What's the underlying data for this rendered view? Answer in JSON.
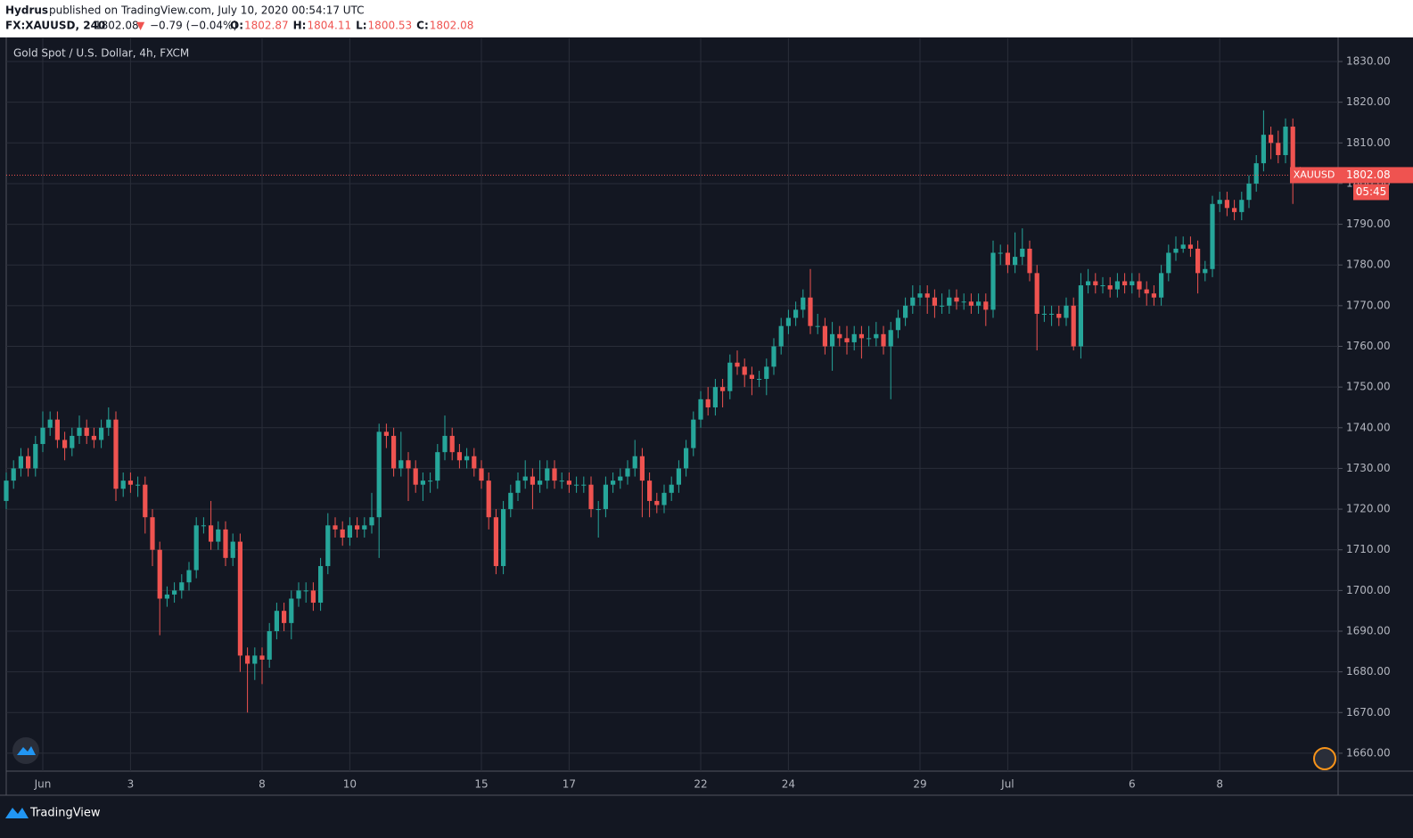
{
  "header": {
    "author": "Hydrus",
    "published": "published on TradingView.com, July 10, 2020 00:54:17 UTC",
    "symbol": "FX:XAUUSD, 240",
    "price": "1802.08",
    "arrow": "▼",
    "change": "−0.79 (−0.04%)",
    "ohlc": [
      {
        "label": "O:",
        "value": "1802.87"
      },
      {
        "label": "H:",
        "value": "1804.11"
      },
      {
        "label": "L:",
        "value": "1800.53"
      },
      {
        "label": "C:",
        "value": "1802.08"
      }
    ]
  },
  "footer": {
    "brand": "TradingView"
  },
  "chart_data": {
    "type": "candlestick",
    "title": "Gold Spot / U.S. Dollar, 4h, FXCM",
    "up_color": "#26a69a",
    "down_color": "#ef5350",
    "grid": true,
    "categories": [
      null,
      null,
      null,
      null,
      null,
      "Jun",
      null,
      null,
      null,
      null,
      null,
      null,
      null,
      null,
      null,
      null,
      null,
      "3",
      null,
      null,
      null,
      null,
      null,
      null,
      null,
      null,
      null,
      null,
      null,
      null,
      null,
      null,
      null,
      null,
      null,
      "8",
      null,
      null,
      null,
      null,
      null,
      null,
      null,
      null,
      null,
      null,
      null,
      "10",
      null,
      null,
      null,
      null,
      null,
      null,
      null,
      null,
      null,
      null,
      null,
      null,
      null,
      null,
      null,
      null,
      null,
      "15",
      null,
      null,
      null,
      null,
      null,
      null,
      null,
      null,
      null,
      null,
      null,
      "17",
      null,
      null,
      null,
      null,
      null,
      null,
      null,
      null,
      null,
      null,
      null,
      null,
      null,
      null,
      null,
      null,
      null,
      "22",
      null,
      null,
      null,
      null,
      null,
      null,
      null,
      null,
      null,
      null,
      null,
      "24",
      null,
      null,
      null,
      null,
      null,
      null,
      null,
      null,
      null,
      null,
      null,
      null,
      null,
      null,
      null,
      null,
      null,
      "29",
      null,
      null,
      null,
      null,
      null,
      null,
      null,
      null,
      null,
      null,
      null,
      "Jul",
      null,
      null,
      null,
      null,
      null,
      null,
      null,
      null,
      null,
      null,
      null,
      null,
      null,
      null,
      null,
      null,
      "6",
      null,
      null,
      null,
      null,
      null,
      null,
      null,
      null,
      null,
      null,
      null,
      "8",
      null,
      null,
      null,
      null,
      null,
      null,
      null,
      null,
      null,
      null,
      null
    ],
    "open": [
      1722,
      1727,
      1730,
      1733,
      1730,
      1736,
      1740,
      1742,
      1737,
      1735,
      1738,
      1740,
      1738,
      1737,
      1740,
      1742,
      1725,
      1727,
      1726,
      1726,
      1718,
      1710,
      1698,
      1699,
      1700,
      1702,
      1705,
      1716,
      1716,
      1712,
      1715,
      1708,
      1712,
      1684,
      1682,
      1684,
      1683,
      1690,
      1695,
      1692,
      1698,
      1700,
      1700,
      1697,
      1706,
      1716,
      1715,
      1713,
      1716,
      1715,
      1716,
      1718,
      1739,
      1738,
      1730,
      1732,
      1730,
      1726,
      1727,
      1727,
      1734,
      1738,
      1734,
      1732,
      1733,
      1730,
      1727,
      1718,
      1706,
      1720,
      1724,
      1727,
      1728,
      1726,
      1727,
      1730,
      1727,
      1727,
      1726,
      1726,
      1726,
      1720,
      1720,
      1726,
      1727,
      1728,
      1730,
      1733,
      1727,
      1722,
      1721,
      1724,
      1726,
      1730,
      1735,
      1742,
      1747,
      1745,
      1750,
      1749,
      1756,
      1755,
      1753,
      1752,
      1752,
      1755,
      1760,
      1765,
      1767,
      1769,
      1772,
      1765,
      1765,
      1760,
      1763,
      1762,
      1761,
      1763,
      1762,
      1762,
      1763,
      1760,
      1764,
      1767,
      1770,
      1772,
      1773,
      1772,
      1770,
      1770,
      1772,
      1771,
      1771,
      1770,
      1771,
      1769,
      1783,
      1783,
      1780,
      1782,
      1784,
      1778,
      1768,
      1768,
      1768,
      1767,
      1770,
      1760,
      1775,
      1776,
      1775,
      1775,
      1774,
      1776,
      1775,
      1776,
      1774,
      1773,
      1772,
      1778,
      1783,
      1784,
      1785,
      1784,
      1778,
      1779,
      1795,
      1796,
      1794,
      1793,
      1796,
      1800,
      1805,
      1812,
      1810,
      1807,
      1814,
      1802.87
    ],
    "high": [
      1729,
      1732,
      1735,
      1735,
      1738,
      1744,
      1744,
      1744,
      1739,
      1740,
      1743,
      1742,
      1740,
      1742,
      1745,
      1744,
      1729,
      1729,
      1728,
      1728,
      1720,
      1712,
      1701,
      1702,
      1704,
      1707,
      1718,
      1718,
      1722,
      1717,
      1717,
      1714,
      1714,
      1686,
      1686,
      1686,
      1692,
      1697,
      1697,
      1700,
      1702,
      1702,
      1702,
      1708,
      1719,
      1718,
      1717,
      1718,
      1718,
      1718,
      1724,
      1741,
      1741,
      1740,
      1739,
      1734,
      1732,
      1729,
      1729,
      1736,
      1743,
      1740,
      1736,
      1735,
      1735,
      1732,
      1729,
      1720,
      1722,
      1726,
      1729,
      1732,
      1730,
      1732,
      1732,
      1732,
      1729,
      1729,
      1728,
      1728,
      1728,
      1722,
      1728,
      1729,
      1730,
      1732,
      1737,
      1735,
      1729,
      1724,
      1726,
      1728,
      1732,
      1737,
      1744,
      1749,
      1750,
      1752,
      1752,
      1758,
      1759,
      1757,
      1755,
      1754,
      1757,
      1762,
      1767,
      1769,
      1771,
      1774,
      1779,
      1768,
      1767,
      1766,
      1765,
      1765,
      1765,
      1765,
      1765,
      1766,
      1765,
      1766,
      1769,
      1772,
      1775,
      1775,
      1775,
      1774,
      1773,
      1774,
      1774,
      1773,
      1773,
      1773,
      1773,
      1786,
      1785,
      1785,
      1788,
      1789,
      1786,
      1780,
      1770,
      1770,
      1770,
      1772,
      1772,
      1778,
      1779,
      1778,
      1777,
      1777,
      1778,
      1778,
      1778,
      1778,
      1776,
      1775,
      1780,
      1785,
      1787,
      1787,
      1787,
      1786,
      1781,
      1797,
      1798,
      1798,
      1796,
      1798,
      1802,
      1807,
      1818,
      1814,
      1813,
      1816,
      1816,
      1804.11
    ],
    "low": [
      1720,
      1725,
      1728,
      1728,
      1728,
      1734,
      1738,
      1735,
      1732,
      1733,
      1736,
      1736,
      1735,
      1735,
      1738,
      1722,
      1723,
      1724,
      1723,
      1714,
      1706,
      1689,
      1696,
      1697,
      1698,
      1700,
      1703,
      1714,
      1710,
      1710,
      1706,
      1706,
      1680,
      1670,
      1678,
      1677,
      1681,
      1688,
      1690,
      1688,
      1696,
      1697,
      1695,
      1695,
      1704,
      1713,
      1711,
      1711,
      1713,
      1713,
      1714,
      1708,
      1735,
      1728,
      1728,
      1722,
      1724,
      1722,
      1724,
      1725,
      1732,
      1732,
      1730,
      1730,
      1728,
      1725,
      1715,
      1704,
      1704,
      1718,
      1722,
      1725,
      1720,
      1724,
      1725,
      1725,
      1725,
      1724,
      1724,
      1724,
      1718,
      1713,
      1718,
      1724,
      1725,
      1726,
      1728,
      1718,
      1718,
      1719,
      1719,
      1722,
      1724,
      1728,
      1733,
      1740,
      1743,
      1743,
      1745,
      1747,
      1753,
      1750,
      1748,
      1750,
      1748,
      1753,
      1758,
      1763,
      1765,
      1767,
      1763,
      1763,
      1758,
      1754,
      1760,
      1758,
      1759,
      1757,
      1760,
      1760,
      1758,
      1747,
      1762,
      1765,
      1768,
      1770,
      1768,
      1767,
      1768,
      1768,
      1769,
      1769,
      1768,
      1768,
      1765,
      1767,
      1780,
      1778,
      1778,
      1780,
      1776,
      1759,
      1766,
      1765,
      1765,
      1765,
      1759,
      1757,
      1773,
      1773,
      1773,
      1772,
      1772,
      1773,
      1773,
      1772,
      1770,
      1770,
      1770,
      1776,
      1781,
      1783,
      1782,
      1773,
      1776,
      1777,
      1793,
      1792,
      1791,
      1791,
      1794,
      1798,
      1803,
      1806,
      1805,
      1805,
      1795,
      1800.53
    ],
    "close": [
      1727,
      1730,
      1733,
      1730,
      1736,
      1740,
      1742,
      1737,
      1735,
      1738,
      1740,
      1738,
      1737,
      1740,
      1742,
      1725,
      1727,
      1726,
      1726,
      1718,
      1710,
      1698,
      1699,
      1700,
      1702,
      1705,
      1716,
      1716,
      1712,
      1715,
      1708,
      1712,
      1684,
      1682,
      1684,
      1683,
      1690,
      1695,
      1692,
      1698,
      1700,
      1700,
      1697,
      1706,
      1716,
      1715,
      1713,
      1716,
      1715,
      1716,
      1718,
      1739,
      1738,
      1730,
      1732,
      1730,
      1726,
      1727,
      1727,
      1734,
      1738,
      1734,
      1732,
      1733,
      1730,
      1727,
      1718,
      1706,
      1720,
      1724,
      1727,
      1728,
      1726,
      1727,
      1730,
      1727,
      1727,
      1726,
      1726,
      1726,
      1720,
      1720,
      1726,
      1727,
      1728,
      1730,
      1733,
      1727,
      1722,
      1721,
      1724,
      1726,
      1730,
      1735,
      1742,
      1747,
      1745,
      1750,
      1749,
      1756,
      1755,
      1753,
      1752,
      1752,
      1755,
      1760,
      1765,
      1767,
      1769,
      1772,
      1765,
      1765,
      1760,
      1763,
      1762,
      1761,
      1763,
      1762,
      1762,
      1763,
      1760,
      1764,
      1767,
      1770,
      1772,
      1773,
      1772,
      1770,
      1770,
      1772,
      1771,
      1771,
      1770,
      1771,
      1769,
      1783,
      1783,
      1780,
      1782,
      1784,
      1778,
      1768,
      1768,
      1768,
      1767,
      1770,
      1760,
      1775,
      1776,
      1775,
      1775,
      1774,
      1776,
      1775,
      1776,
      1774,
      1773,
      1772,
      1778,
      1783,
      1784,
      1785,
      1784,
      1778,
      1779,
      1795,
      1796,
      1794,
      1793,
      1796,
      1800,
      1805,
      1812,
      1810,
      1807,
      1814,
      1802.87,
      1802.08
    ],
    "ylim": [
      1655.6,
      1835.7
    ],
    "yticks": [
      {
        "value": 1660,
        "label": "1660.00"
      },
      {
        "value": 1670,
        "label": "1670.00"
      },
      {
        "value": 1680,
        "label": "1680.00"
      },
      {
        "value": 1690,
        "label": "1690.00"
      },
      {
        "value": 1700,
        "label": "1700.00"
      },
      {
        "value": 1710,
        "label": "1710.00"
      },
      {
        "value": 1720,
        "label": "1720.00"
      },
      {
        "value": 1730,
        "label": "1730.00"
      },
      {
        "value": 1740,
        "label": "1740.00"
      },
      {
        "value": 1750,
        "label": "1750.00"
      },
      {
        "value": 1760,
        "label": "1760.00"
      },
      {
        "value": 1770,
        "label": "1770.00"
      },
      {
        "value": 1780,
        "label": "1780.00"
      },
      {
        "value": 1790,
        "label": "1790.00"
      },
      {
        "value": 1800,
        "label": "1800.00"
      },
      {
        "value": 1810,
        "label": "1810.00"
      },
      {
        "value": 1820,
        "label": "1820.00"
      },
      {
        "value": 1830,
        "label": "1830.00"
      }
    ],
    "last_price": {
      "value": 1802.08,
      "symbol": "XAUUSD",
      "countdown": "05:45"
    }
  }
}
